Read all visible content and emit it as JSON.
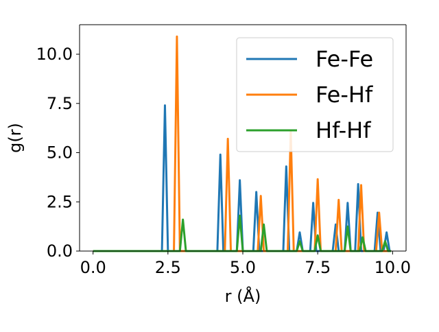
{
  "chart_data": {
    "type": "line",
    "xlabel": "r (Å)",
    "ylabel": "g(r)",
    "xlim": [
      -0.45,
      10.45
    ],
    "ylim": [
      0,
      11.5
    ],
    "x_ticks": [
      0.0,
      2.5,
      5.0,
      7.5,
      10.0
    ],
    "x_tick_labels": [
      "0.0",
      "2.5",
      "5.0",
      "7.5",
      "10.0"
    ],
    "y_ticks": [
      0.0,
      2.5,
      5.0,
      7.5,
      10.0
    ],
    "y_tick_labels": [
      "0.0",
      "2.5",
      "5.0",
      "7.5",
      "10.0"
    ],
    "grid": false,
    "legend_position": "upper-right",
    "peak_half_width": 0.1,
    "series": [
      {
        "name": "Fe-Fe",
        "color": "#1f77b4",
        "peaks": [
          [
            2.4,
            7.4
          ],
          [
            4.25,
            4.9
          ],
          [
            4.9,
            3.6
          ],
          [
            5.45,
            3.0
          ],
          [
            6.45,
            4.3
          ],
          [
            6.9,
            0.95
          ],
          [
            7.35,
            2.45
          ],
          [
            8.1,
            1.35
          ],
          [
            8.5,
            2.45
          ],
          [
            8.85,
            3.4
          ],
          [
            9.5,
            1.95
          ],
          [
            9.8,
            0.95
          ]
        ]
      },
      {
        "name": "Fe-Hf",
        "color": "#ff7f0e",
        "peaks": [
          [
            2.8,
            10.9
          ],
          [
            4.5,
            5.7
          ],
          [
            5.6,
            2.8
          ],
          [
            6.6,
            6.1
          ],
          [
            7.5,
            3.65
          ],
          [
            8.2,
            2.6
          ],
          [
            8.95,
            3.35
          ],
          [
            9.55,
            1.95
          ]
        ]
      },
      {
        "name": "Hf-Hf",
        "color": "#2ca02c",
        "peaks": [
          [
            3.0,
            1.6
          ],
          [
            4.9,
            1.8
          ],
          [
            5.7,
            1.35
          ],
          [
            6.9,
            0.5
          ],
          [
            7.5,
            0.8
          ],
          [
            8.5,
            1.25
          ],
          [
            9.0,
            0.7
          ],
          [
            9.75,
            0.5
          ]
        ]
      }
    ]
  }
}
